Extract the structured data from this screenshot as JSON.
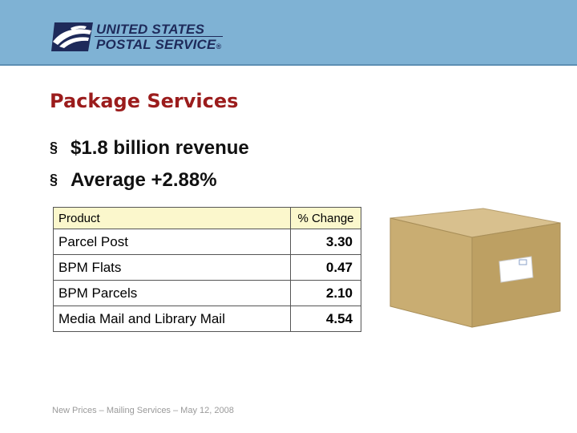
{
  "header": {
    "logo_line1": "UNITED STATES",
    "logo_line2": "POSTAL SERVICE",
    "logo_mark": "®",
    "background": "#7fb2d4"
  },
  "slide": {
    "title": "Package Services",
    "title_color": "#9b1c1c",
    "bullet_icon": "square-bullet-icon",
    "bullets": [
      "$1.8 billion revenue",
      "Average +2.88%"
    ]
  },
  "table": {
    "headers": [
      "Product",
      "% Change"
    ],
    "header_background": "#fbf7cc",
    "rows": [
      {
        "product": "Parcel Post",
        "change": "3.30"
      },
      {
        "product": "BPM Flats",
        "change": "0.47"
      },
      {
        "product": "BPM Parcels",
        "change": "2.10"
      },
      {
        "product": "Media Mail and Library Mail",
        "change": "4.54"
      }
    ]
  },
  "illustration": {
    "icon": "cardboard-box-icon"
  },
  "footer": {
    "text": "New Prices – Mailing Services – May 12, 2008"
  }
}
